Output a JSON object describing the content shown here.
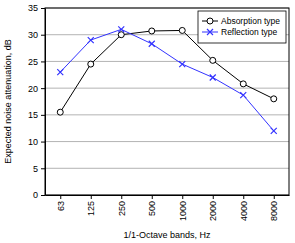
{
  "chart_data": {
    "type": "line",
    "x_label": "1/1-Octave bands, Hz",
    "y_label": "Expected noise attenuation, dB",
    "categories": [
      "63",
      "125",
      "250",
      "500",
      "1000",
      "2000",
      "4000",
      "8000"
    ],
    "series": [
      {
        "name": "Absorption type",
        "color": "#000000",
        "marker": "circle",
        "line_style": "solid",
        "values": [
          15.5,
          24.5,
          30,
          30.7,
          30.8,
          25.2,
          20.8,
          18
        ]
      },
      {
        "name": "Reflection type",
        "color": "#3333ff",
        "marker": "x",
        "line_style": "solid",
        "values": [
          23,
          29,
          31,
          28.3,
          24.5,
          22,
          18.7,
          12
        ]
      }
    ],
    "ylim": [
      0,
      35
    ],
    "yticks": [
      0,
      5,
      10,
      15,
      20,
      25,
      30,
      35
    ],
    "grid": true,
    "legend": "upper right"
  }
}
